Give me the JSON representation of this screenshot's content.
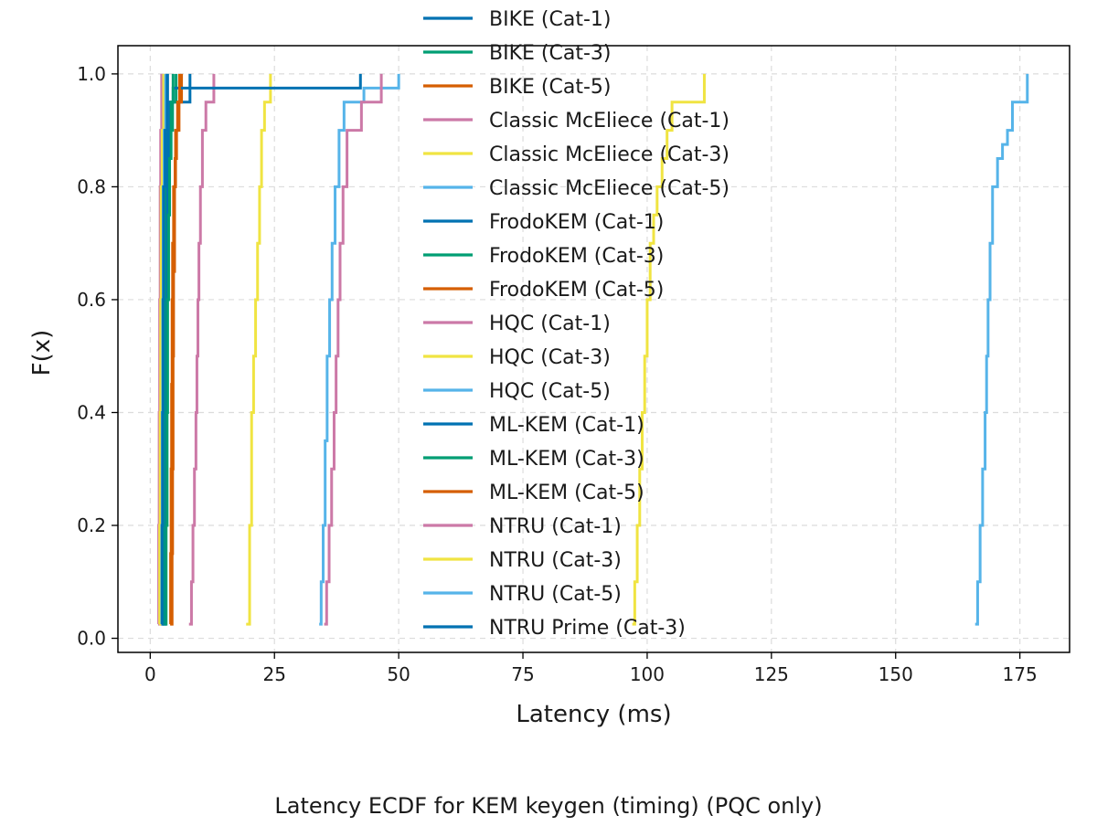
{
  "chart_data": {
    "type": "line",
    "subtype": "ecdf-step",
    "title": "",
    "caption": "Latency ECDF for KEM keygen (timing) (PQC only)",
    "xlabel": "Latency (ms)",
    "ylabel": "F(x)",
    "xlim": [
      -6.5,
      185
    ],
    "ylim": [
      -0.025,
      1.05
    ],
    "xticks": [
      0,
      25,
      50,
      75,
      100,
      125,
      150,
      175
    ],
    "xtick_labels": [
      "0",
      "25",
      "50",
      "75",
      "100",
      "125",
      "150",
      "175"
    ],
    "yticks": [
      0.0,
      0.2,
      0.4,
      0.6,
      0.8,
      1.0
    ],
    "ytick_labels": [
      "0.0",
      "0.2",
      "0.4",
      "0.6",
      "0.8",
      "1.0"
    ],
    "grid": true,
    "legend": "top-center",
    "series": [
      {
        "name": "BIKE (Cat-1)",
        "color": "#0072B2",
        "x": [
          2.5,
          2.6,
          2.7,
          2.8,
          2.9,
          3.0,
          3.1,
          3.3,
          3.6,
          4.0,
          8.0
        ],
        "y": [
          0.025,
          0.1,
          0.2,
          0.3,
          0.45,
          0.55,
          0.7,
          0.8,
          0.9,
          0.95,
          1.0
        ]
      },
      {
        "name": "BIKE (Cat-3)",
        "color": "#009E73",
        "x": [
          2.9,
          3.0,
          3.1,
          3.2,
          3.3,
          3.4,
          3.6,
          3.8,
          4.1,
          4.5,
          5.2
        ],
        "y": [
          0.025,
          0.1,
          0.2,
          0.35,
          0.5,
          0.65,
          0.75,
          0.85,
          0.9,
          0.95,
          1.0
        ]
      },
      {
        "name": "BIKE (Cat-5)",
        "color": "#D55E00",
        "x": [
          4.0,
          4.1,
          4.2,
          4.3,
          4.4,
          4.5,
          4.7,
          5.0,
          5.3,
          5.8,
          6.3
        ],
        "y": [
          0.025,
          0.15,
          0.3,
          0.45,
          0.6,
          0.7,
          0.8,
          0.85,
          0.9,
          0.95,
          1.0
        ]
      },
      {
        "name": "Classic McEliece (Cat-1)",
        "color": "#CC79A7",
        "x": [
          7.8,
          8.3,
          8.6,
          8.9,
          9.2,
          9.4,
          9.6,
          9.8,
          10.1,
          10.5,
          11.2,
          12.8
        ],
        "y": [
          0.025,
          0.1,
          0.2,
          0.3,
          0.4,
          0.5,
          0.6,
          0.7,
          0.8,
          0.9,
          0.95,
          1.0
        ]
      },
      {
        "name": "Classic McEliece (Cat-3)",
        "color": "#F0E442",
        "x": [
          19.3,
          20.0,
          20.4,
          20.8,
          21.2,
          21.6,
          22.0,
          22.4,
          23.0,
          24.2
        ],
        "y": [
          0.025,
          0.2,
          0.4,
          0.5,
          0.6,
          0.7,
          0.8,
          0.9,
          0.95,
          1.0
        ]
      },
      {
        "name": "Classic McEliece (Cat-5)",
        "color": "#56B4E9",
        "x": [
          34.0,
          34.4,
          34.8,
          35.2,
          35.6,
          36.1,
          36.6,
          37.2,
          38.0,
          39.0,
          43.0,
          50.0
        ],
        "y": [
          0.025,
          0.1,
          0.2,
          0.35,
          0.5,
          0.6,
          0.7,
          0.8,
          0.9,
          0.95,
          0.975,
          1.0
        ]
      },
      {
        "name": "FrodoKEM (Cat-1)",
        "color": "#0072B2",
        "x": [
          2.9,
          3.0,
          3.1,
          3.2,
          3.3,
          3.5,
          3.7,
          4.1,
          4.6,
          42.3
        ],
        "y": [
          0.025,
          0.2,
          0.4,
          0.55,
          0.7,
          0.8,
          0.9,
          0.95,
          0.975,
          1.0
        ]
      },
      {
        "name": "FrodoKEM (Cat-3)",
        "color": "#009E73",
        "x": [
          3.0,
          3.2,
          3.4,
          3.5,
          3.7,
          3.9,
          4.2,
          4.6
        ],
        "y": [
          0.025,
          0.2,
          0.4,
          0.6,
          0.75,
          0.85,
          0.95,
          1.0
        ]
      },
      {
        "name": "FrodoKEM (Cat-5)",
        "color": "#D55E00",
        "x": [
          4.3,
          4.4,
          4.5,
          4.6,
          4.7,
          4.9,
          5.1,
          5.5,
          5.9
        ],
        "y": [
          0.025,
          0.15,
          0.3,
          0.5,
          0.65,
          0.8,
          0.9,
          0.95,
          1.0
        ]
      },
      {
        "name": "HQC (Cat-1)",
        "color": "#CC79A7",
        "x": [
          35.0,
          35.5,
          36.0,
          36.5,
          37.0,
          37.4,
          37.8,
          38.2,
          38.8,
          39.6,
          42.5,
          46.5
        ],
        "y": [
          0.025,
          0.1,
          0.2,
          0.3,
          0.4,
          0.5,
          0.6,
          0.7,
          0.8,
          0.9,
          0.95,
          1.0
        ]
      },
      {
        "name": "HQC (Cat-3)",
        "color": "#F0E442",
        "x": [
          97.0,
          97.5,
          98.0,
          98.5,
          99.0,
          99.5,
          100.0,
          100.6,
          101.3,
          102.0,
          103.0,
          104.0,
          105.0,
          111.5
        ],
        "y": [
          0.025,
          0.1,
          0.2,
          0.3,
          0.4,
          0.5,
          0.6,
          0.7,
          0.75,
          0.8,
          0.85,
          0.9,
          0.95,
          1.0
        ]
      },
      {
        "name": "HQC (Cat-5)",
        "color": "#56B4E9",
        "x": [
          166.0,
          166.5,
          167.0,
          167.5,
          168.0,
          168.3,
          168.6,
          169.0,
          169.5,
          170.5,
          171.5,
          172.5,
          173.5,
          176.5
        ],
        "y": [
          0.025,
          0.1,
          0.2,
          0.3,
          0.4,
          0.5,
          0.6,
          0.7,
          0.8,
          0.85,
          0.875,
          0.9,
          0.95,
          1.0
        ]
      },
      {
        "name": "ML-KEM (Cat-1)",
        "color": "#0072B2",
        "x": [
          2.6,
          2.7,
          2.8,
          2.9,
          3.0,
          3.2,
          3.5
        ],
        "y": [
          0.025,
          0.2,
          0.4,
          0.6,
          0.8,
          0.9,
          1.0
        ]
      },
      {
        "name": "ML-KEM (Cat-3)",
        "color": "#009E73",
        "x": [
          2.5,
          2.6,
          2.7,
          2.8,
          2.9,
          3.0,
          3.3
        ],
        "y": [
          0.025,
          0.2,
          0.4,
          0.6,
          0.8,
          0.9,
          1.0
        ]
      },
      {
        "name": "ML-KEM (Cat-5)",
        "color": "#D55E00",
        "x": [
          2.0,
          2.1,
          2.2,
          2.3,
          2.4,
          2.6,
          3.0
        ],
        "y": [
          0.025,
          0.2,
          0.4,
          0.6,
          0.8,
          0.9,
          1.0
        ]
      },
      {
        "name": "NTRU (Cat-1)",
        "color": "#CC79A7",
        "x": [
          1.6,
          1.7,
          1.8,
          1.9,
          2.0,
          2.1,
          2.3
        ],
        "y": [
          0.025,
          0.2,
          0.4,
          0.6,
          0.8,
          0.9,
          1.0
        ]
      },
      {
        "name": "NTRU (Cat-3)",
        "color": "#F0E442",
        "x": [
          1.8,
          1.9,
          2.0,
          2.1,
          2.2,
          2.4,
          2.7
        ],
        "y": [
          0.025,
          0.2,
          0.4,
          0.6,
          0.8,
          0.9,
          1.0
        ]
      },
      {
        "name": "NTRU (Cat-5)",
        "color": "#56B4E9",
        "x": [
          2.2,
          2.3,
          2.4,
          2.5,
          2.6,
          2.8,
          3.1
        ],
        "y": [
          0.025,
          0.2,
          0.4,
          0.6,
          0.8,
          0.9,
          1.0
        ]
      },
      {
        "name": "NTRU Prime (Cat-3)",
        "color": "#0072B2",
        "x": [
          2.3,
          2.4,
          2.5,
          2.6,
          2.7,
          3.0,
          3.4
        ],
        "y": [
          0.025,
          0.2,
          0.4,
          0.6,
          0.8,
          0.9,
          1.0
        ]
      }
    ]
  }
}
